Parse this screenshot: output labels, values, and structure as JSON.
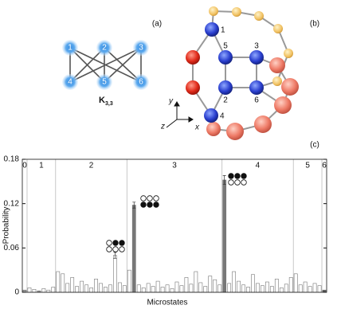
{
  "panels": {
    "a": "(a)",
    "b": "(b)",
    "c": "(c)"
  },
  "graph": {
    "nodes": [
      "1",
      "2",
      "3",
      "4",
      "5",
      "6"
    ],
    "label": "K",
    "label_sub": "3,3"
  },
  "molecule": {
    "sites": [
      "1",
      "5",
      "3",
      "2",
      "6",
      "4"
    ],
    "axes": [
      "x",
      "y",
      "z"
    ]
  },
  "chart_data": {
    "type": "bar",
    "xlabel": "Microstates",
    "ylabel": "Probability",
    "ylim": [
      0,
      0.18
    ],
    "yticks": [
      0,
      0.06,
      0.12,
      0.18
    ],
    "sectors": {
      "labels": [
        "0",
        "1",
        "2",
        "3",
        "4",
        "5",
        "6"
      ],
      "sizes": [
        1,
        6,
        15,
        20,
        15,
        6,
        1
      ]
    },
    "values": [
      0.003,
      0.006,
      0.004,
      0.002,
      0.005,
      0.003,
      0.007,
      0.028,
      0.025,
      0.012,
      0.02,
      0.008,
      0.015,
      0.01,
      0.006,
      0.018,
      0.012,
      0.007,
      0.01,
      0.05,
      0.013,
      0.009,
      0.03,
      0.118,
      0.01,
      0.006,
      0.012,
      0.008,
      0.015,
      0.007,
      0.01,
      0.005,
      0.014,
      0.009,
      0.02,
      0.011,
      0.028,
      0.013,
      0.008,
      0.022,
      0.017,
      0.01,
      0.152,
      0.012,
      0.028,
      0.015,
      0.01,
      0.007,
      0.024,
      0.012,
      0.009,
      0.014,
      0.008,
      0.018,
      0.006,
      0.011,
      0.02,
      0.025,
      0.01,
      0.014,
      0.008,
      0.012,
      0.009,
      0.003
    ],
    "errors": [
      null,
      null,
      null,
      null,
      null,
      null,
      null,
      null,
      null,
      null,
      null,
      null,
      null,
      null,
      null,
      null,
      null,
      null,
      null,
      0.004,
      null,
      null,
      null,
      0.004,
      null,
      null,
      null,
      null,
      null,
      null,
      null,
      null,
      null,
      null,
      null,
      null,
      null,
      null,
      null,
      null,
      null,
      null,
      0.006,
      null,
      null,
      null,
      null,
      null,
      null,
      null,
      null,
      null,
      null,
      null,
      null,
      null,
      null,
      null,
      null,
      null,
      null,
      null,
      null,
      null
    ],
    "colors": [
      "#999",
      "#fff",
      "#fff",
      "#999",
      "#fff",
      "#fff",
      "#fff",
      "#fff",
      "#fff",
      "#fff",
      "#fff",
      "#fff",
      "#fff",
      "#fff",
      "#fff",
      "#fff",
      "#fff",
      "#fff",
      "#fff",
      "#fff",
      "#fff",
      "#fff",
      "#fff",
      "#777",
      "#fff",
      "#fff",
      "#fff",
      "#fff",
      "#fff",
      "#fff",
      "#fff",
      "#fff",
      "#fff",
      "#fff",
      "#fff",
      "#fff",
      "#fff",
      "#fff",
      "#fff",
      "#fff",
      "#fff",
      "#fff",
      "#777",
      "#fff",
      "#fff",
      "#fff",
      "#fff",
      "#fff",
      "#fff",
      "#fff",
      "#fff",
      "#fff",
      "#fff",
      "#fff",
      "#fff",
      "#fff",
      "#fff",
      "#fff",
      "#fff",
      "#fff",
      "#fff",
      "#fff",
      "#fff",
      "#555"
    ]
  }
}
